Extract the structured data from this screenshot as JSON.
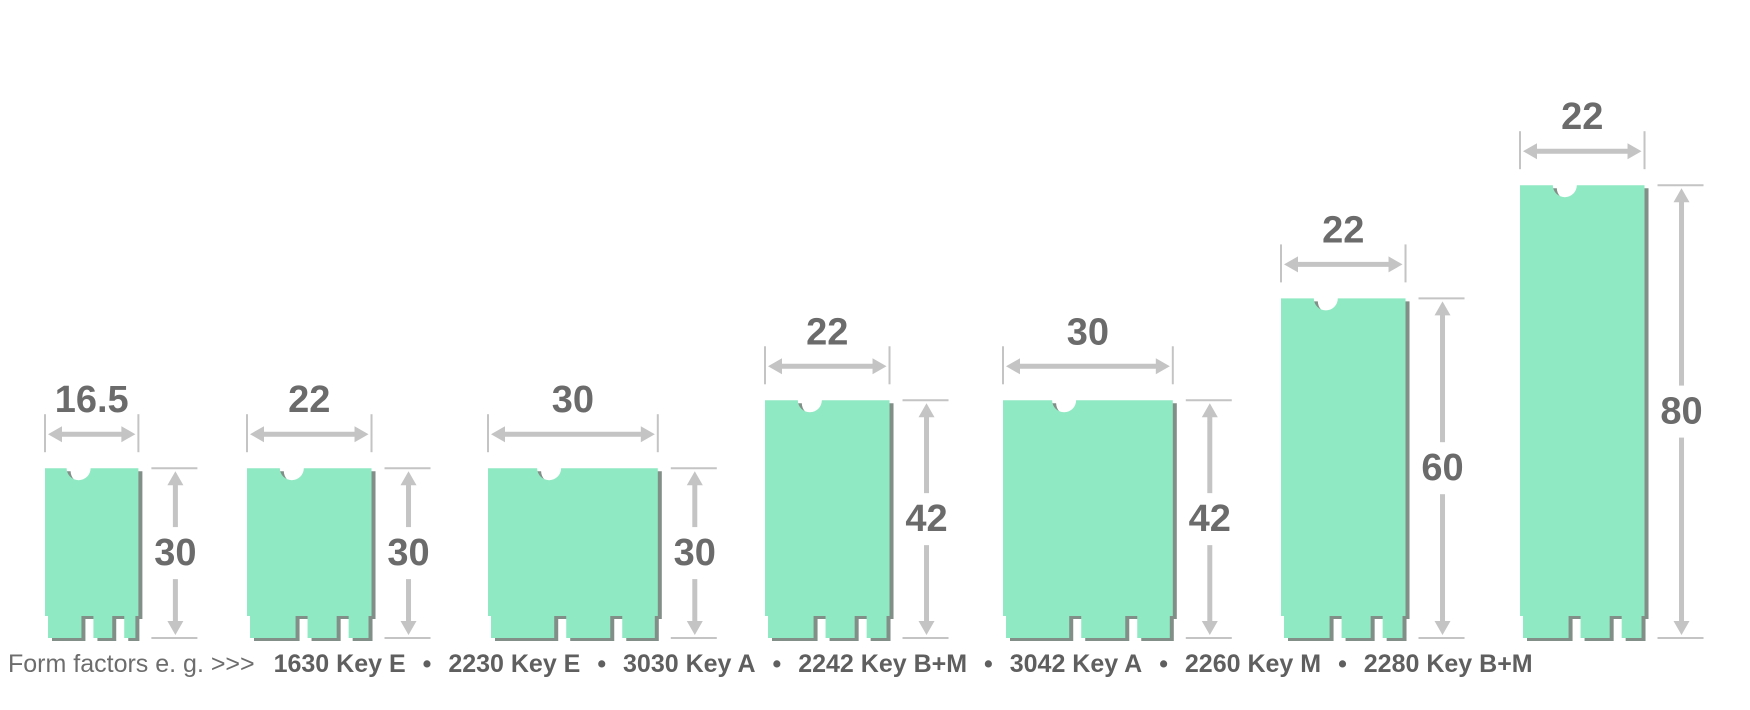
{
  "colors": {
    "board": "#8fe9c2",
    "board_shadow": "#6c7a73",
    "dimension_line": "#c4c4c4",
    "label": "#6b6b6b"
  },
  "modules": [
    {
      "id": "1630",
      "width_label": "16.5",
      "length_label": "30",
      "width_mm": 16.5,
      "length_mm": 30
    },
    {
      "id": "2230",
      "width_label": "22",
      "length_label": "30",
      "width_mm": 22,
      "length_mm": 30
    },
    {
      "id": "3030",
      "width_label": "30",
      "length_label": "30",
      "width_mm": 30,
      "length_mm": 30
    },
    {
      "id": "2242",
      "width_label": "22",
      "length_label": "42",
      "width_mm": 22,
      "length_mm": 42
    },
    {
      "id": "3042",
      "width_label": "30",
      "length_label": "42",
      "width_mm": 30,
      "length_mm": 42
    },
    {
      "id": "2260",
      "width_label": "22",
      "length_label": "60",
      "width_mm": 22,
      "length_mm": 60
    },
    {
      "id": "2280",
      "width_label": "22",
      "length_label": "80",
      "width_mm": 22,
      "length_mm": 80
    }
  ],
  "caption": {
    "prefix": "Form factors e. g. >>>",
    "separator": "•",
    "items": [
      "1630 Key E",
      "2230 Key E",
      "3030 Key A",
      "2242 Key B+M",
      "3042 Key A",
      "2260 Key M",
      "2280 Key B+M"
    ]
  }
}
